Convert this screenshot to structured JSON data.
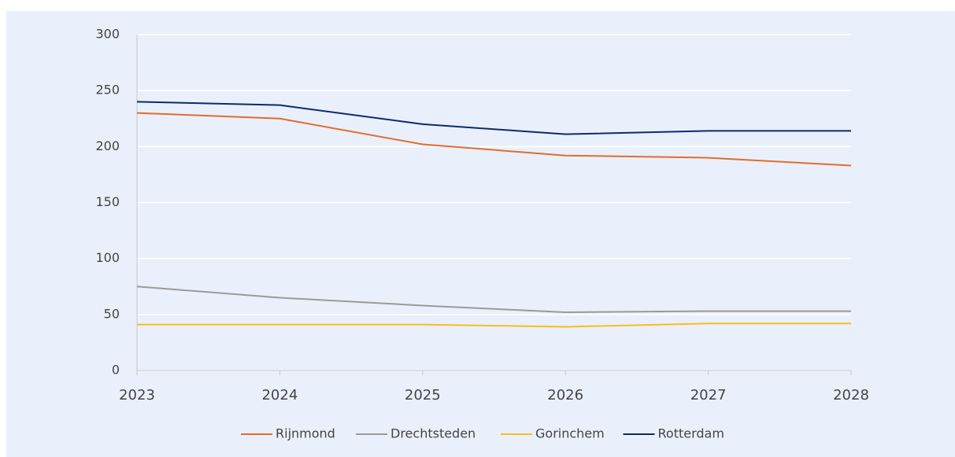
{
  "chart_data": {
    "type": "line",
    "x": [
      2023,
      2024,
      2025,
      2026,
      2027,
      2028
    ],
    "xlim": [
      2023,
      2028
    ],
    "xticks": [
      2023,
      2024,
      2025,
      2026,
      2027,
      2028
    ],
    "ylim": [
      0,
      300
    ],
    "yticks": [
      0,
      50,
      100,
      150,
      200,
      250,
      300
    ],
    "grid": true,
    "legend": "bottom",
    "series": [
      {
        "name": "Rijnmond",
        "color": "#e36c2b",
        "values": [
          230,
          225,
          202,
          192,
          190,
          183
        ]
      },
      {
        "name": "Drechtsteden",
        "color": "#9a9a9a",
        "values": [
          75,
          65,
          58,
          52,
          53,
          53
        ]
      },
      {
        "name": "Gorinchem",
        "color": "#f6bd1e",
        "values": [
          41,
          41,
          41,
          39,
          42,
          42
        ]
      },
      {
        "name": "Rotterdam",
        "color": "#0b2a6e",
        "values": [
          240,
          237,
          220,
          211,
          214,
          214
        ]
      }
    ]
  }
}
